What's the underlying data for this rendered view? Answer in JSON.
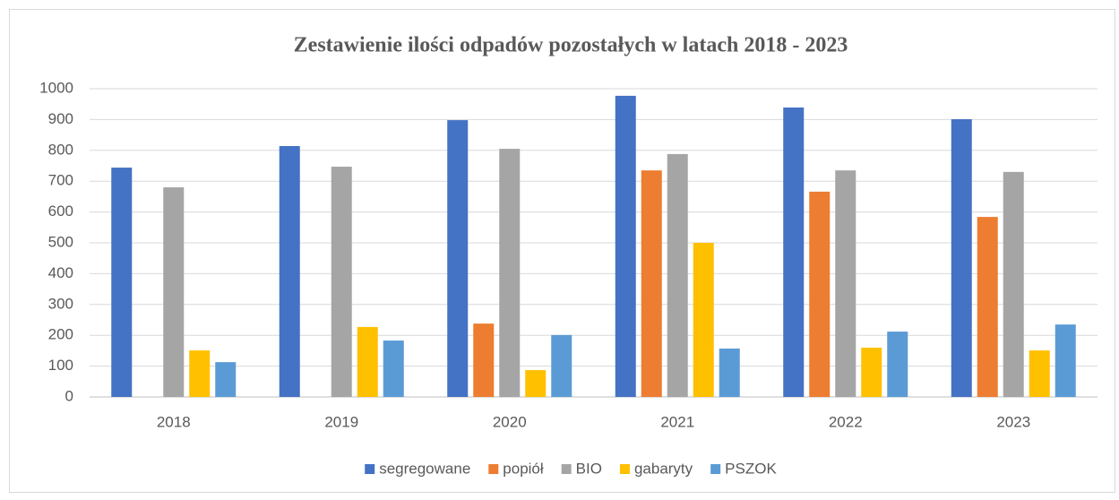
{
  "chart_data": {
    "type": "bar",
    "title": "Zestawienie ilości odpadów pozostałych w latach 2018 - 2023",
    "categories": [
      "2018",
      "2019",
      "2020",
      "2021",
      "2022",
      "2023"
    ],
    "series": [
      {
        "name": "segregowane",
        "color": "#4472c4",
        "values": [
          744,
          814,
          898,
          977,
          939,
          901
        ]
      },
      {
        "name": "popiół",
        "color": "#ed7d31",
        "values": [
          0,
          0,
          238,
          735,
          666,
          584
        ]
      },
      {
        "name": "BIO",
        "color": "#a5a5a5",
        "values": [
          680,
          747,
          805,
          788,
          735,
          730
        ]
      },
      {
        "name": "gabaryty",
        "color": "#ffc000",
        "values": [
          151,
          227,
          87,
          500,
          160,
          151
        ]
      },
      {
        "name": "PSZOK",
        "color": "#5b9bd5",
        "values": [
          113,
          183,
          201,
          157,
          212,
          235
        ]
      }
    ],
    "ylim": [
      0,
      1000
    ],
    "yticks": [
      0,
      100,
      200,
      300,
      400,
      500,
      600,
      700,
      800,
      900,
      1000
    ],
    "grid": true,
    "legend": "bottom"
  }
}
